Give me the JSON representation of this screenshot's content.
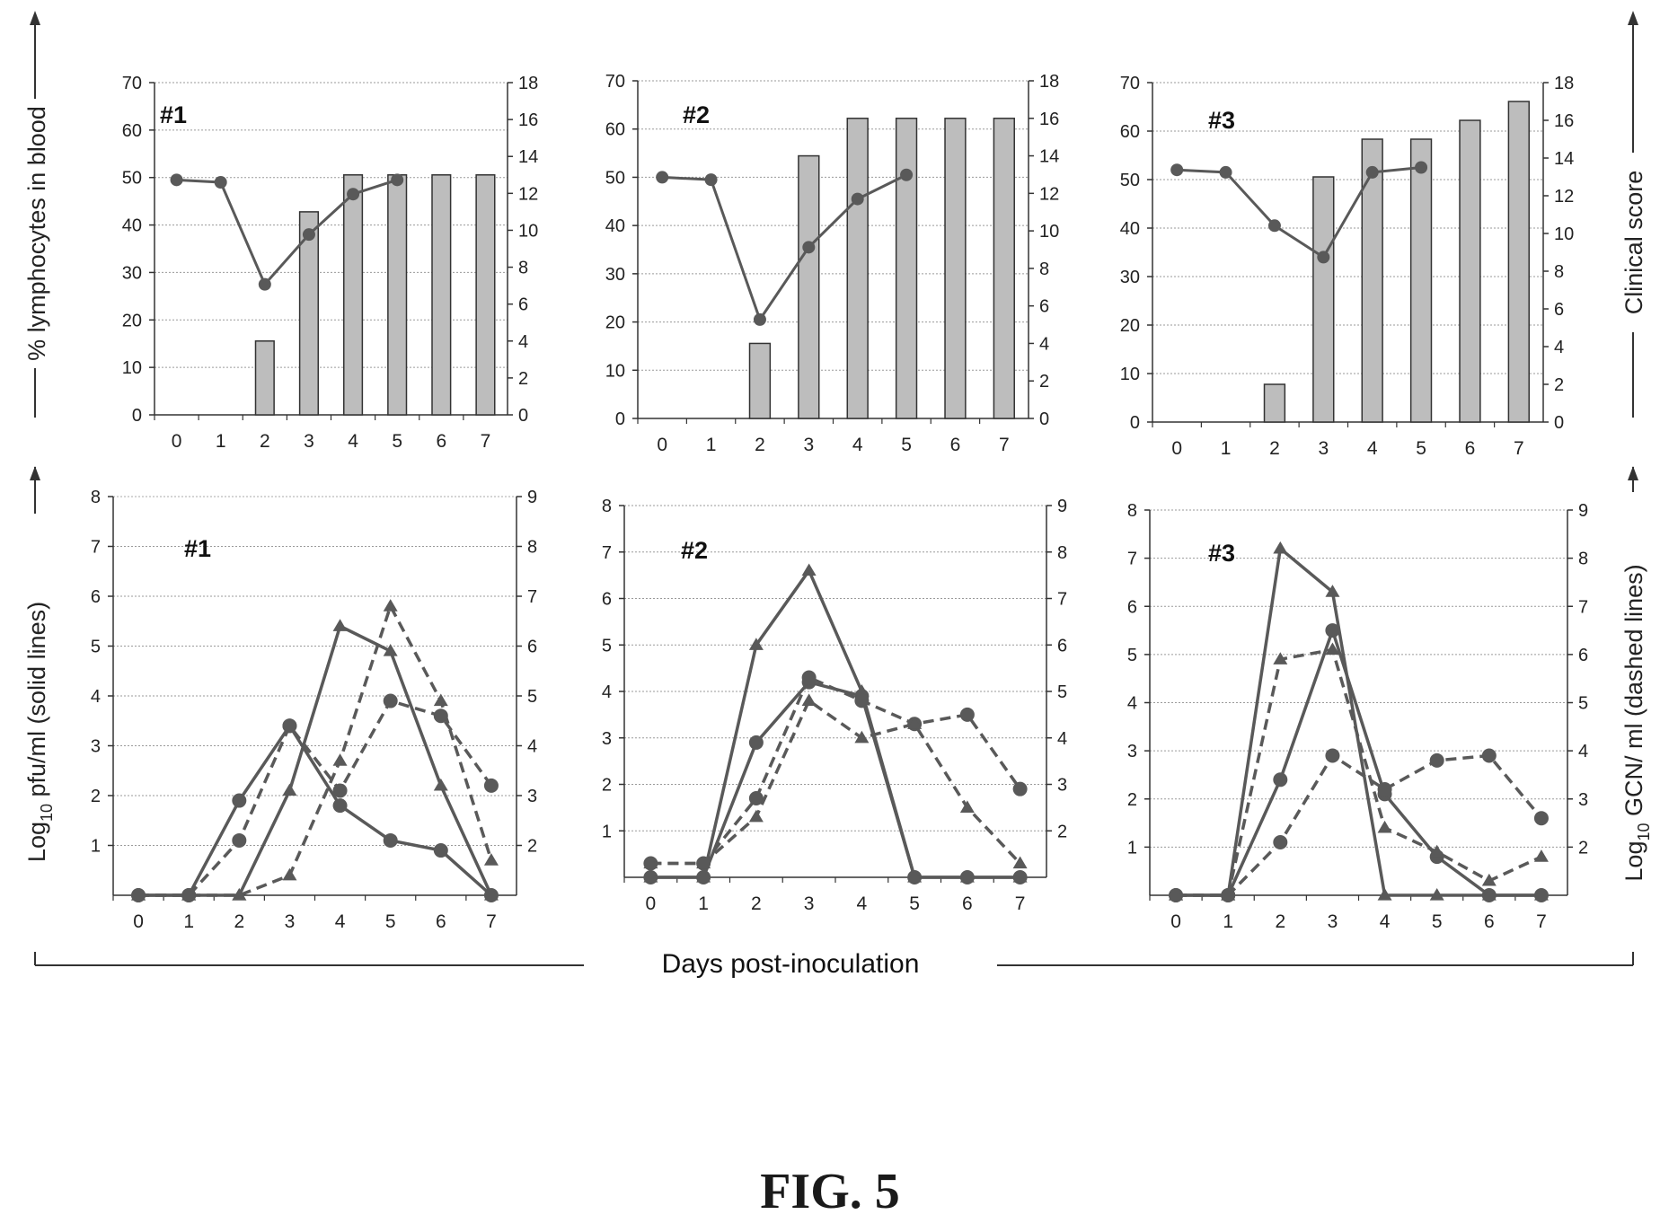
{
  "figure_caption": "FIG. 5",
  "common_xlabel": "Days post-inoculation",
  "top_left_ylabel": "% lymphocytes in blood",
  "top_right_ylabel": "Clinical score",
  "bottom_left_ylabel_main": "Log",
  "bottom_left_ylabel_sub": "10",
  "bottom_left_ylabel_rest": " pfu/ml (solid lines)",
  "bottom_right_ylabel_main": "Log",
  "bottom_right_ylabel_sub": "10",
  "bottom_right_ylabel_rest": " GCN/ ml (dashed lines)",
  "colors": {
    "bar_fill": "#bdbdbd",
    "line": "#595959",
    "axis": "#333333",
    "grid": "#9a9a9a"
  },
  "chart_data": [
    {
      "type": "bar+line",
      "panel": "#1",
      "x": [
        0,
        1,
        2,
        3,
        4,
        5,
        6,
        7
      ],
      "ylim_left": [
        0,
        70
      ],
      "yticks_left": [
        0,
        10,
        20,
        30,
        40,
        50,
        60,
        70
      ],
      "ylim_right": [
        0,
        18
      ],
      "yticks_right": [
        0,
        2,
        4,
        6,
        8,
        10,
        12,
        14,
        16,
        18
      ],
      "bars": {
        "axis": "right",
        "values": [
          0,
          0,
          4,
          11,
          13,
          13,
          13,
          13
        ]
      },
      "line": {
        "axis": "left",
        "x": [
          0,
          1,
          2,
          3,
          4,
          5
        ],
        "values": [
          49.5,
          49,
          27.5,
          38,
          46.5,
          49.5
        ]
      },
      "grid": true
    },
    {
      "type": "bar+line",
      "panel": "#2",
      "x": [
        0,
        1,
        2,
        3,
        4,
        5,
        6,
        7
      ],
      "ylim_left": [
        0,
        70
      ],
      "yticks_left": [
        0,
        10,
        20,
        30,
        40,
        50,
        60,
        70
      ],
      "ylim_right": [
        0,
        18
      ],
      "yticks_right": [
        0,
        2,
        4,
        6,
        8,
        10,
        12,
        14,
        16,
        18
      ],
      "bars": {
        "axis": "right",
        "values": [
          0,
          0,
          4,
          14,
          16,
          16,
          16,
          16
        ]
      },
      "line": {
        "axis": "left",
        "x": [
          0,
          1,
          2,
          3,
          4,
          5
        ],
        "values": [
          50,
          49.5,
          20.5,
          35.5,
          45.5,
          50.5
        ]
      },
      "grid": true
    },
    {
      "type": "bar+line",
      "panel": "#3",
      "x": [
        0,
        1,
        2,
        3,
        4,
        5,
        6,
        7
      ],
      "ylim_left": [
        0,
        70
      ],
      "yticks_left": [
        0,
        10,
        20,
        30,
        40,
        50,
        60,
        70
      ],
      "ylim_right": [
        0,
        18
      ],
      "yticks_right": [
        0,
        2,
        4,
        6,
        8,
        10,
        12,
        14,
        16,
        18
      ],
      "bars": {
        "axis": "right",
        "values": [
          0,
          0,
          2,
          13,
          15,
          15,
          16,
          17
        ]
      },
      "line": {
        "axis": "left",
        "x": [
          0,
          1,
          2,
          3,
          4,
          5
        ],
        "values": [
          52,
          51.5,
          40.5,
          34,
          51.5,
          52.5
        ]
      },
      "grid": true
    },
    {
      "type": "line",
      "panel": "#1",
      "x": [
        0,
        1,
        2,
        3,
        4,
        5,
        6,
        7
      ],
      "ylim_left": [
        0,
        8
      ],
      "yticks_left": [
        1,
        2,
        3,
        4,
        5,
        6,
        7,
        8
      ],
      "ylim_right": [
        1,
        9
      ],
      "yticks_right": [
        2,
        3,
        4,
        5,
        6,
        7,
        8,
        9
      ],
      "series": [
        {
          "axis": "left",
          "dash": false,
          "marker": "circle",
          "values": [
            0,
            0,
            1.9,
            3.4,
            1.8,
            1.1,
            0.9,
            0
          ]
        },
        {
          "axis": "left",
          "dash": false,
          "marker": "triangle",
          "values": [
            0,
            0,
            0,
            2.1,
            5.4,
            4.9,
            2.2,
            0
          ]
        },
        {
          "axis": "right",
          "dash": true,
          "marker": "circle",
          "values": [
            1,
            1,
            2.1,
            4.4,
            3.1,
            4.9,
            4.6,
            3.2
          ]
        },
        {
          "axis": "right",
          "dash": true,
          "marker": "triangle",
          "values": [
            1,
            1,
            1,
            1.4,
            3.7,
            6.8,
            4.9,
            1.7
          ]
        }
      ],
      "grid": true
    },
    {
      "type": "line",
      "panel": "#2",
      "x": [
        0,
        1,
        2,
        3,
        4,
        5,
        6,
        7
      ],
      "ylim_left": [
        0,
        8
      ],
      "yticks_left": [
        1,
        2,
        3,
        4,
        5,
        6,
        7,
        8
      ],
      "ylim_right": [
        1,
        9
      ],
      "yticks_right": [
        2,
        3,
        4,
        5,
        6,
        7,
        8,
        9
      ],
      "series": [
        {
          "axis": "left",
          "dash": false,
          "marker": "circle",
          "values": [
            0,
            0,
            2.9,
            4.2,
            3.9,
            0,
            0,
            0
          ]
        },
        {
          "axis": "left",
          "dash": false,
          "marker": "triangle",
          "values": [
            0,
            0,
            5,
            6.6,
            4,
            0,
            0,
            0
          ]
        },
        {
          "axis": "right",
          "dash": true,
          "marker": "circle",
          "values": [
            1.3,
            1.3,
            2.7,
            5.3,
            4.8,
            4.3,
            4.5,
            2.9
          ]
        },
        {
          "axis": "right",
          "dash": true,
          "marker": "triangle",
          "values": [
            1.3,
            1.3,
            2.3,
            4.8,
            4,
            4.3,
            2.5,
            1.3
          ]
        }
      ],
      "grid": true
    },
    {
      "type": "line",
      "panel": "#3",
      "x": [
        0,
        1,
        2,
        3,
        4,
        5,
        6,
        7
      ],
      "ylim_left": [
        0,
        8
      ],
      "yticks_left": [
        1,
        2,
        3,
        4,
        5,
        6,
        7,
        8
      ],
      "ylim_right": [
        1,
        9
      ],
      "yticks_right": [
        2,
        3,
        4,
        5,
        6,
        7,
        8,
        9
      ],
      "series": [
        {
          "axis": "left",
          "dash": false,
          "marker": "circle",
          "values": [
            0,
            0,
            2.4,
            5.5,
            2.1,
            0.8,
            0,
            0
          ]
        },
        {
          "axis": "left",
          "dash": false,
          "marker": "triangle",
          "values": [
            0,
            0,
            7.2,
            6.3,
            0,
            0,
            0,
            0
          ]
        },
        {
          "axis": "right",
          "dash": true,
          "marker": "circle",
          "values": [
            1,
            1,
            2.1,
            3.9,
            3.2,
            3.8,
            3.9,
            2.6
          ]
        },
        {
          "axis": "right",
          "dash": true,
          "marker": "triangle",
          "values": [
            1,
            1,
            5.9,
            6.1,
            2.4,
            1.9,
            1.3,
            1.8
          ]
        }
      ],
      "grid": true
    }
  ]
}
